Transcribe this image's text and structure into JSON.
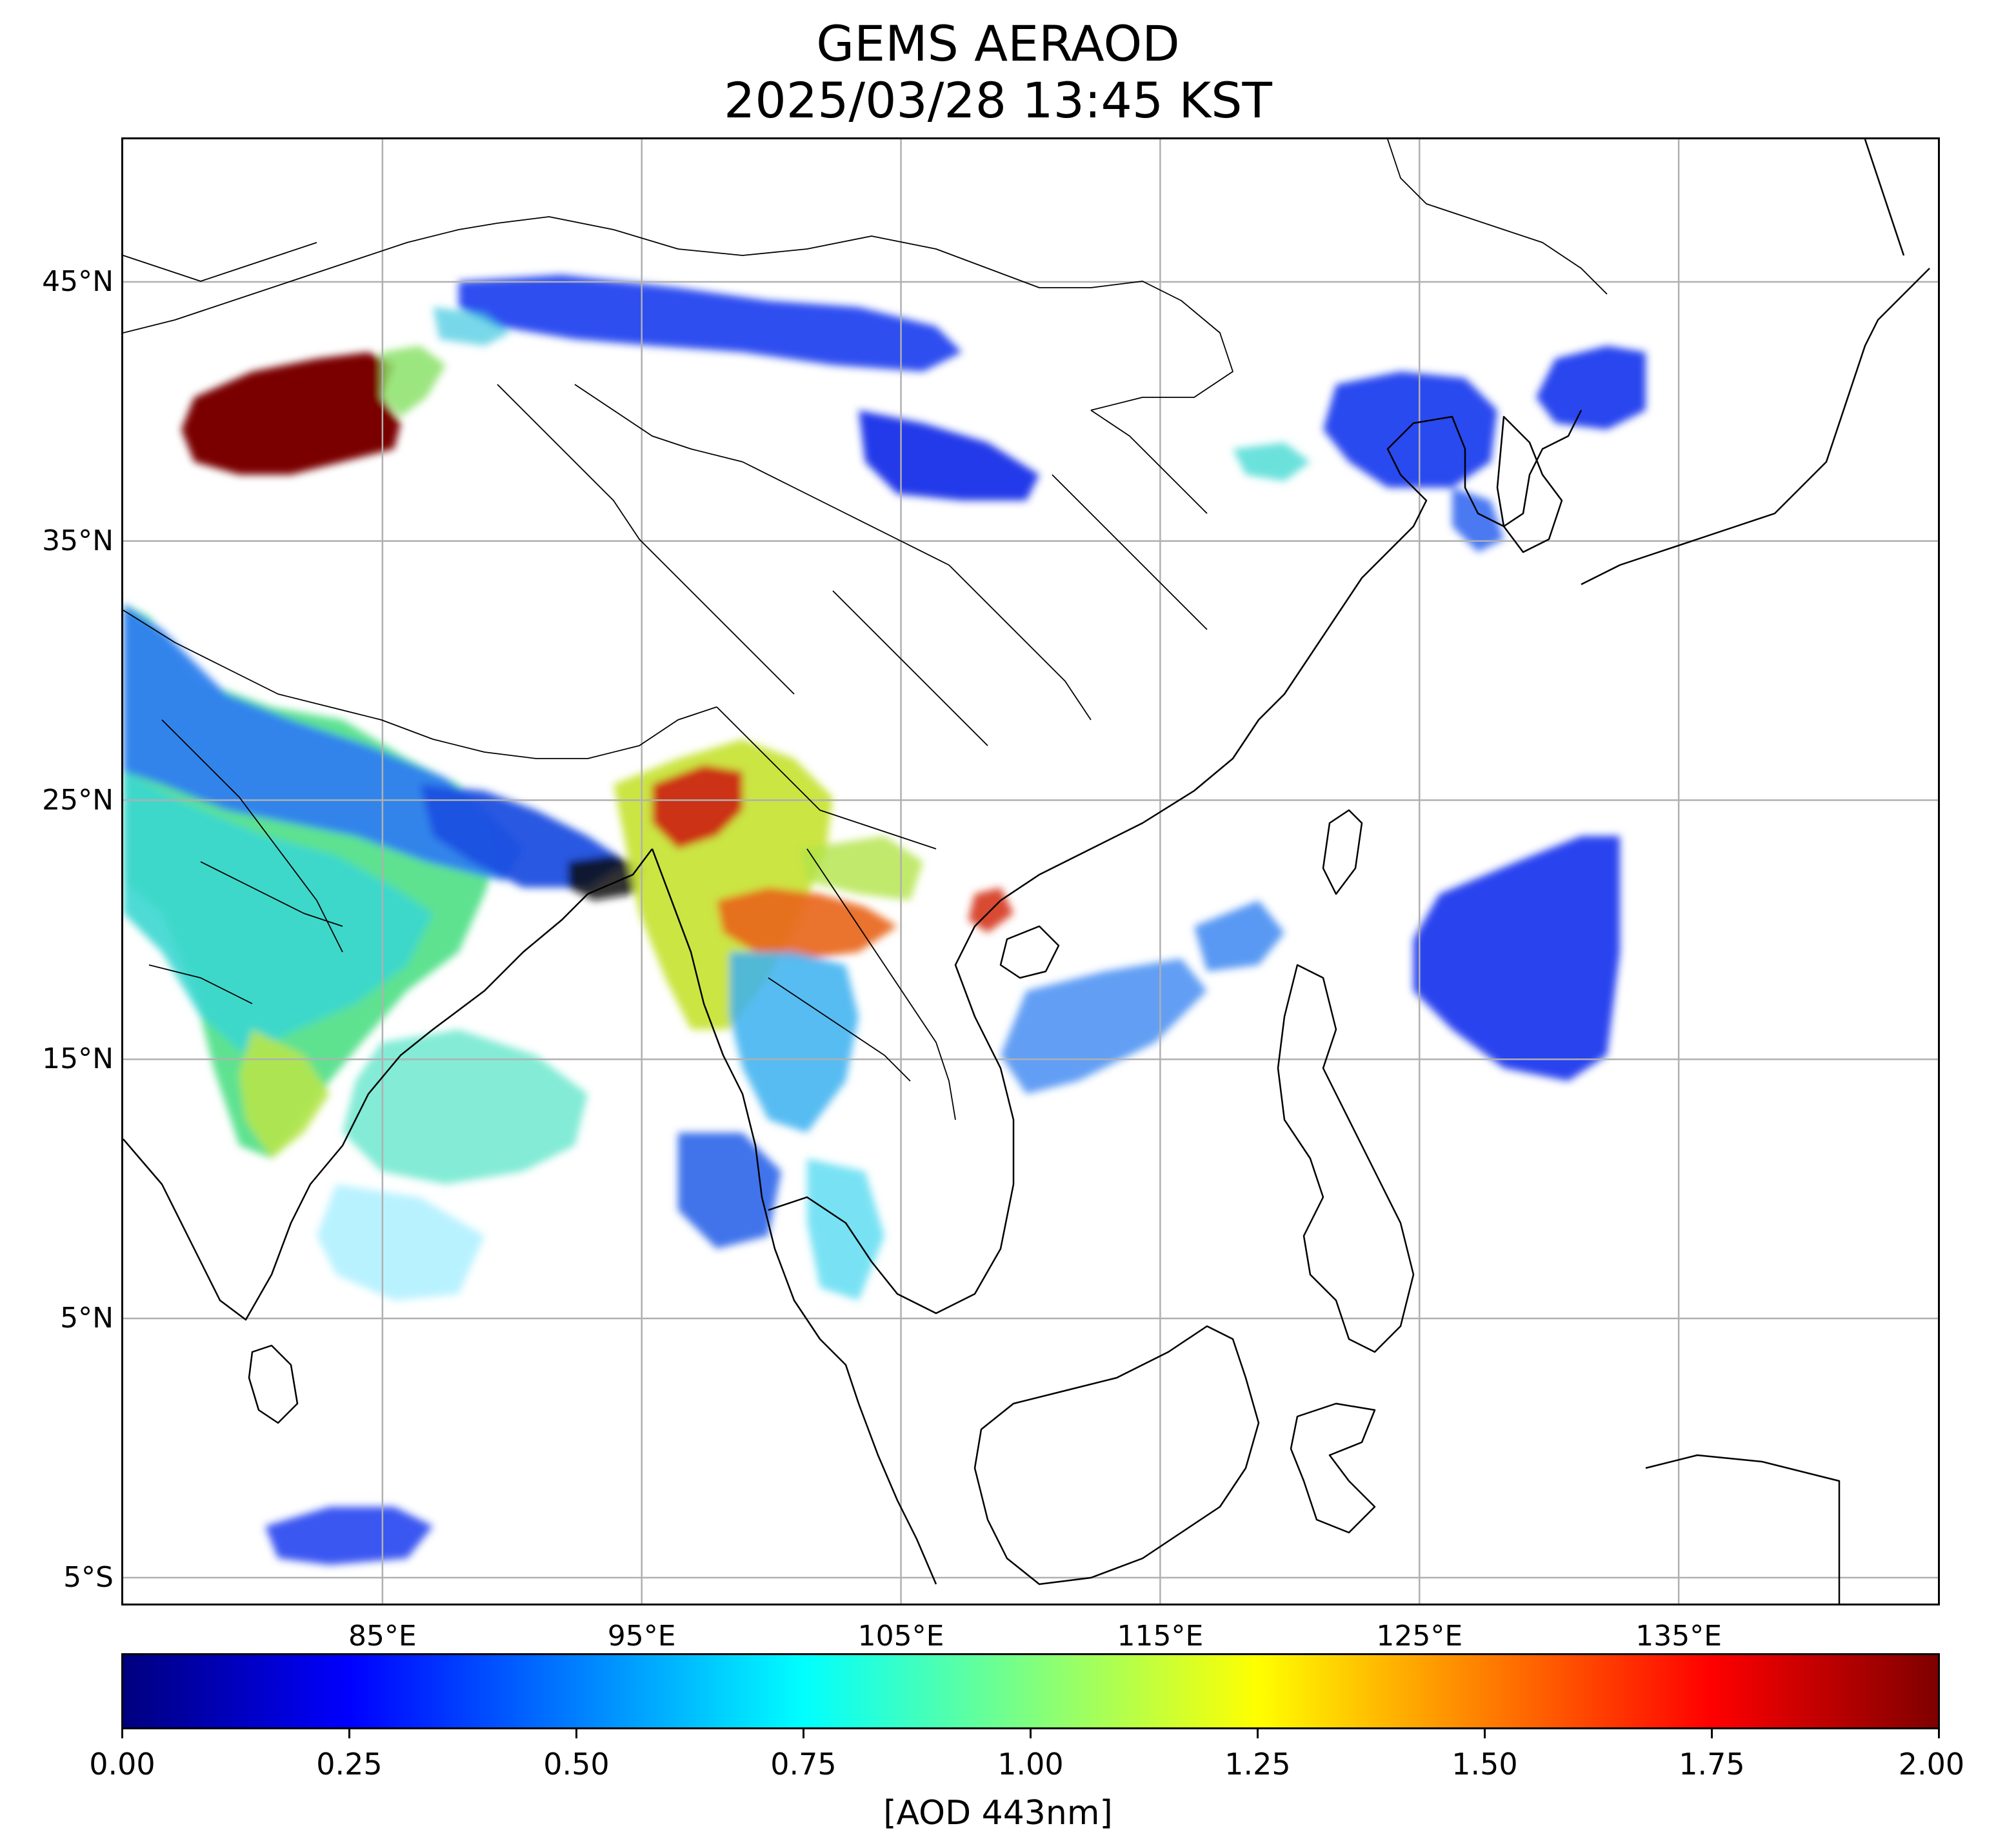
{
  "title": {
    "line1": "GEMS AERAOD",
    "line2": "2025/03/28 13:45 KST"
  },
  "map": {
    "extent": {
      "lon_min": 75,
      "lon_max": 145,
      "lat_min": -6,
      "lat_max": 50.5
    },
    "lat_ticks": [
      {
        "value": 45,
        "label": "45°N"
      },
      {
        "value": 35,
        "label": "35°N"
      },
      {
        "value": 25,
        "label": "25°N"
      },
      {
        "value": 15,
        "label": "15°N"
      },
      {
        "value": 5,
        "label": "5°N"
      },
      {
        "value": -5,
        "label": "5°S"
      }
    ],
    "lon_ticks": [
      {
        "value": 85,
        "label": "85°E"
      },
      {
        "value": 95,
        "label": "95°E"
      },
      {
        "value": 105,
        "label": "105°E"
      },
      {
        "value": 115,
        "label": "115°E"
      },
      {
        "value": 125,
        "label": "125°E"
      },
      {
        "value": 135,
        "label": "135°E"
      }
    ],
    "gridlines": true
  },
  "colorbar": {
    "colormap": "jet",
    "range": [
      0,
      2
    ],
    "ticks": [
      "0.00",
      "0.25",
      "0.50",
      "0.75",
      "1.00",
      "1.25",
      "1.50",
      "1.75",
      "2.00"
    ],
    "label": "[AOD 443nm]"
  }
}
